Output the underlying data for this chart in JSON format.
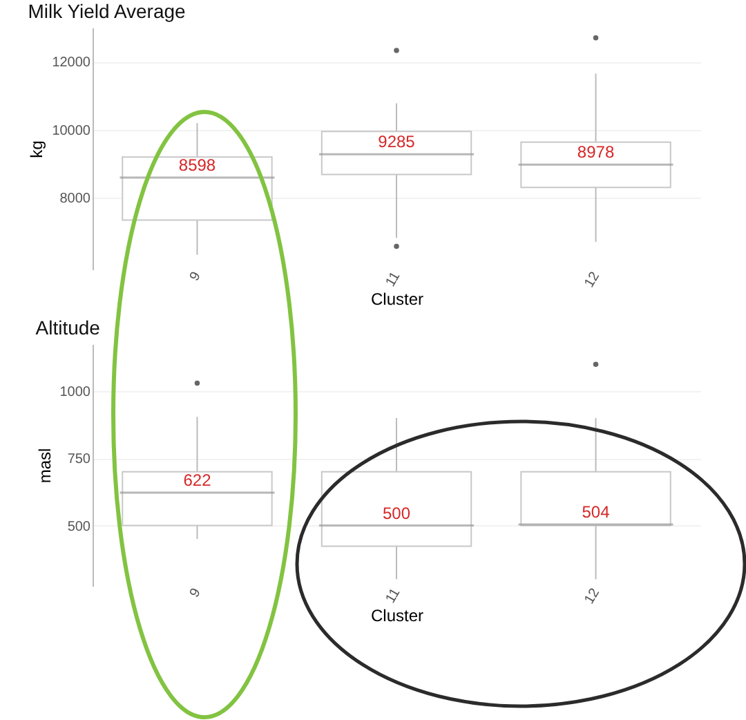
{
  "chart_data": [
    {
      "type": "box",
      "title": "Milk Yield Average",
      "xlabel": "Cluster",
      "ylabel": "kg",
      "categories": [
        "9",
        "11",
        "12"
      ],
      "boxes": [
        {
          "low": 6330,
          "q1": 7350,
          "median": 8598,
          "q3": 9200,
          "high": 10200
        },
        {
          "low": 6830,
          "q1": 8690,
          "median": 9285,
          "q3": 9950,
          "high": 10780,
          "outliers": [
            12330,
            6580
          ]
        },
        {
          "low": 6710,
          "q1": 8310,
          "median": 8978,
          "q3": 9640,
          "high": 11650,
          "outliers": [
            12700
          ]
        }
      ],
      "value_labels": [
        "8598",
        "9285",
        "8978"
      ],
      "ylim": [
        5900,
        13000
      ],
      "yticks": [
        8000,
        10000,
        12000
      ],
      "grid": "y"
    },
    {
      "type": "box",
      "title": "Altitude",
      "xlabel": "Cluster",
      "ylabel": "masl",
      "categories": [
        "9",
        "11",
        "12"
      ],
      "boxes": [
        {
          "low": 450,
          "q1": 500,
          "median": 622,
          "q3": 700,
          "high": 904,
          "outliers": [
            1030
          ]
        },
        {
          "low": 300,
          "q1": 423,
          "median": 500,
          "q3": 700,
          "high": 900
        },
        {
          "low": 300,
          "q1": 500,
          "median": 504,
          "q3": 700,
          "high": 900,
          "outliers": [
            1100
          ]
        }
      ],
      "value_labels": [
        "622",
        "500",
        "504"
      ],
      "ylim": [
        275,
        1175
      ],
      "yticks": [
        500,
        750,
        1000
      ],
      "grid": "y"
    }
  ]
}
